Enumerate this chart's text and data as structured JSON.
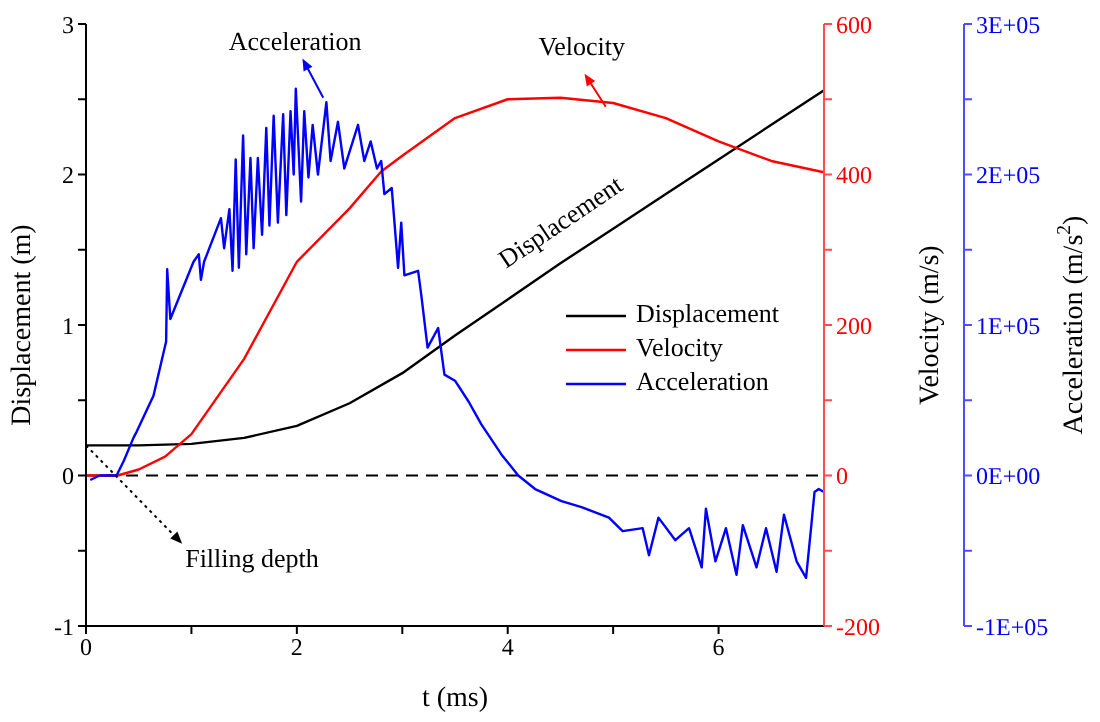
{
  "chart_data": {
    "type": "line",
    "xlabel": "t (ms)",
    "ylabel": "Displacement (m)",
    "y2label": "Velocity (m/s)",
    "y3label": "Acceleration (m/s$^{2}$)",
    "xlim": [
      0,
      7
    ],
    "xticks": [
      0,
      {
        "value": 1,
        "label": null
      },
      2,
      {
        "value": 3,
        "label": null
      },
      4,
      {
        "value": 5,
        "label": null
      },
      6
    ],
    "ylim": [
      -1,
      3
    ],
    "yticks": [
      -1,
      {
        "value": -0.5,
        "label": null
      },
      0,
      {
        "value": 0.5,
        "label": null
      },
      1,
      {
        "value": 1.5,
        "label": null
      },
      2,
      {
        "value": 2.5,
        "label": null
      },
      3
    ],
    "y2lim": [
      -200,
      600
    ],
    "y2ticks": [
      -200,
      {
        "value": -100,
        "label": null
      },
      0,
      {
        "value": 100,
        "label": null
      },
      200,
      {
        "value": 300,
        "label": null
      },
      400,
      {
        "value": 500,
        "label": null
      },
      600
    ],
    "y3lim": [
      -100000,
      300000
    ],
    "y3ticks": [
      {
        "value": -100000,
        "label": "-1E+05"
      },
      {
        "value": -50000,
        "label": null
      },
      {
        "value": 0,
        "label": "0E+00"
      },
      {
        "value": 50000,
        "label": null
      },
      {
        "value": 100000,
        "label": "1E+05"
      },
      {
        "value": 150000,
        "label": null
      },
      {
        "value": 200000,
        "label": "2E+05"
      },
      {
        "value": 250000,
        "label": null
      },
      {
        "value": 300000,
        "label": "3E+05"
      }
    ],
    "series": [
      {
        "name": "Displacement",
        "color": "#000000",
        "x": [
          0,
          0.5,
          1,
          1.5,
          2,
          2.5,
          3,
          3.5,
          4,
          4.5,
          5,
          5.5,
          6,
          6.5,
          7
        ],
        "values": [
          0.2,
          0.2,
          0.21,
          0.25,
          0.33,
          0.48,
          0.68,
          0.93,
          1.17,
          1.41,
          1.64,
          1.87,
          2.1,
          2.33,
          2.56
        ]
      },
      {
        "name": "Velocity",
        "color": "#ff0000",
        "axis": "y2",
        "x": [
          0,
          0.3,
          0.5,
          0.75,
          1,
          1.5,
          2,
          2.5,
          2.8,
          3,
          3.5,
          4,
          4.5,
          5,
          5.5,
          6,
          6.5,
          7
        ],
        "values": [
          0,
          0,
          8,
          25,
          55,
          155,
          284,
          355,
          404,
          425,
          475,
          500,
          502,
          495,
          475,
          444,
          418,
          403
        ]
      },
      {
        "name": "Acceleration",
        "color": "#0000ff",
        "axis": "y3",
        "x": [
          0.04,
          0.13,
          0.29,
          0.36,
          0.45,
          0.48,
          0.64,
          0.76,
          0.77,
          0.8,
          1.02,
          1.07,
          1.09,
          1.12,
          1.28,
          1.31,
          1.36,
          1.39,
          1.42,
          1.45,
          1.49,
          1.52,
          1.56,
          1.59,
          1.63,
          1.67,
          1.71,
          1.74,
          1.78,
          1.82,
          1.87,
          1.9,
          1.94,
          1.97,
          1.99,
          2.04,
          2.07,
          2.11,
          2.15,
          2.2,
          2.28,
          2.32,
          2.39,
          2.45,
          2.58,
          2.64,
          2.7,
          2.76,
          2.8,
          2.83,
          2.9,
          2.96,
          2.99,
          3.02,
          3.15,
          3.18,
          3.24,
          3.34,
          3.4,
          3.5,
          3.63,
          3.75,
          3.94,
          4.1,
          4.26,
          4.51,
          4.7,
          4.96,
          5.09,
          5.28,
          5.34,
          5.43,
          5.59,
          5.72,
          5.84,
          5.88,
          5.97,
          6.07,
          6.17,
          6.23,
          6.36,
          6.45,
          6.55,
          6.62,
          6.74,
          6.83,
          6.88,
          6.91,
          6.95,
          7
        ],
        "values": [
          -3000,
          0,
          0,
          10000,
          25000,
          29000,
          53000,
          89000,
          137000,
          104000,
          142000,
          147000,
          130000,
          142000,
          171000,
          151000,
          177000,
          136000,
          210000,
          138000,
          226000,
          147000,
          211000,
          151000,
          211000,
          160000,
          231000,
          166000,
          239000,
          168000,
          240000,
          173000,
          242000,
          200000,
          257000,
          182000,
          242000,
          198000,
          233000,
          200000,
          248000,
          209000,
          235000,
          204000,
          233000,
          209000,
          222000,
          204000,
          209000,
          187000,
          191000,
          138000,
          168000,
          133000,
          136000,
          120000,
          85000,
          98000,
          67000,
          63000,
          49000,
          34000,
          14000,
          0,
          -9000,
          -17000,
          -21000,
          -28000,
          -37000,
          -35000,
          -53000,
          -28000,
          -43000,
          -35000,
          -61000,
          -22000,
          -57000,
          -35000,
          -66000,
          -33000,
          -61000,
          -35000,
          -64000,
          -26000,
          -57000,
          -68000,
          -33000,
          -11000,
          -9000,
          -11000
        ]
      }
    ],
    "ref_lines": [
      {
        "axis": "y",
        "value": 0,
        "color": "#000000",
        "line_style": "dashed"
      }
    ],
    "annotations": [
      {
        "text": "Acceleration",
        "x": 2.25,
        "y": 2.51
      },
      {
        "text": "Velocity",
        "x": 4.93,
        "y": 2.45
      },
      "Displacement",
      {
        "text": "Filling depth",
        "x": 0,
        "y": 0.2
      }
    ],
    "legend": "right",
    "marker": "none",
    "line_style": "solid"
  }
}
